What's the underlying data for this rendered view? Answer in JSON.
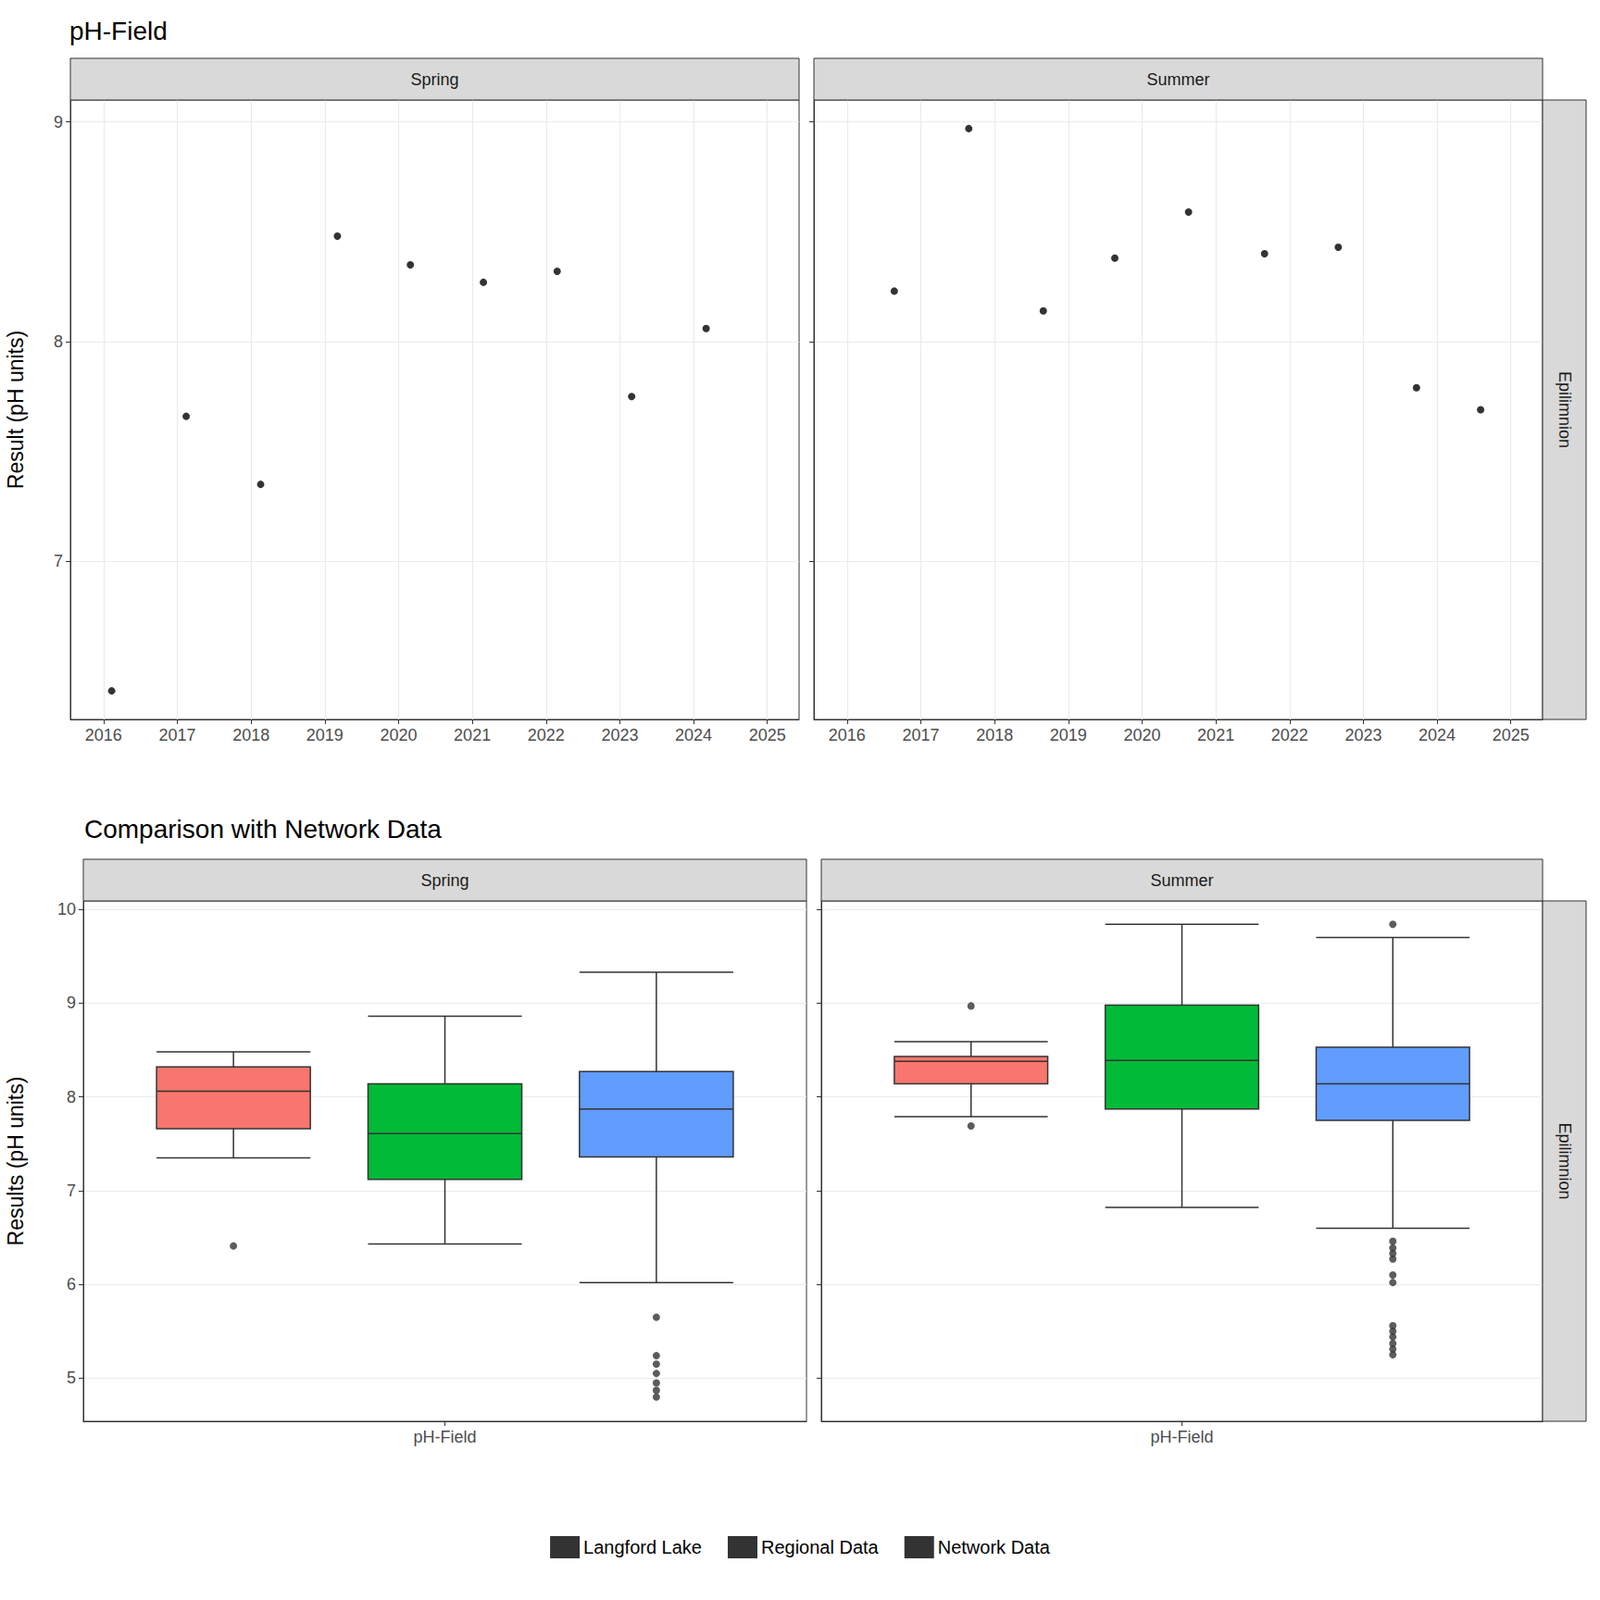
{
  "chart_data": [
    {
      "type": "scatter",
      "title": "pH-Field",
      "ylabel": "Result (pH units)",
      "row_label": "Epilimnion",
      "color": "#000000",
      "marker": "circle",
      "grid": true,
      "xlim": [
        2015.55,
        2025.43
      ],
      "xticks": [
        2016,
        2017,
        2018,
        2019,
        2020,
        2021,
        2022,
        2023,
        2024,
        2025
      ],
      "ylim": [
        6.28,
        9.1
      ],
      "yticks": [
        7,
        8,
        9
      ],
      "facets": [
        {
          "name": "Spring",
          "x": [
            2016.11,
            2017.12,
            2018.13,
            2019.17,
            2020.16,
            2021.15,
            2022.15,
            2023.16,
            2024.17
          ],
          "values": [
            6.41,
            7.66,
            7.35,
            8.48,
            8.35,
            8.27,
            8.32,
            7.75,
            8.06
          ]
        },
        {
          "name": "Summer",
          "x": [
            2016.64,
            2017.65,
            2018.66,
            2019.63,
            2020.63,
            2021.66,
            2022.66,
            2023.72,
            2024.59
          ],
          "values": [
            8.23,
            8.97,
            8.14,
            8.38,
            8.59,
            8.4,
            8.43,
            7.79,
            7.69
          ]
        }
      ]
    },
    {
      "type": "boxplot",
      "title": "Comparison with Network Data",
      "ylabel": "Results (pH units)",
      "row_label": "Epilimnion",
      "categories": [
        "pH-Field"
      ],
      "legend": "bottom",
      "grid": true,
      "ylim": [
        4.54,
        10.09
      ],
      "yticks": [
        5,
        6,
        7,
        8,
        9,
        10
      ],
      "facets": [
        {
          "name": "Spring",
          "series": [
            {
              "name": "Langford Lake",
              "color": "#F8766D",
              "values": [
                [
                  7.35,
                  7.66,
                  8.06,
                  8.32,
                  8.48
                ]
              ],
              "outliers": [
                [
                  6.41
                ]
              ]
            },
            {
              "name": "Regional Data",
              "color": "#00BA38",
              "values": [
                [
                  6.43,
                  7.12,
                  7.61,
                  8.14,
                  8.86
                ]
              ],
              "outliers": [
                []
              ]
            },
            {
              "name": "Network Data",
              "color": "#619CFF",
              "values": [
                [
                  6.02,
                  7.36,
                  7.87,
                  8.27,
                  9.33
                ]
              ],
              "outliers": [
                [
                  5.65,
                  5.24,
                  5.15,
                  5.05,
                  4.95,
                  4.87,
                  4.8
                ]
              ]
            }
          ]
        },
        {
          "name": "Summer",
          "series": [
            {
              "name": "Langford Lake",
              "color": "#F8766D",
              "values": [
                [
                  7.79,
                  8.14,
                  8.38,
                  8.43,
                  8.59
                ]
              ],
              "outliers": [
                [
                  8.97,
                  7.69
                ]
              ]
            },
            {
              "name": "Regional Data",
              "color": "#00BA38",
              "values": [
                [
                  6.82,
                  7.87,
                  8.39,
                  8.98,
                  9.84
                ]
              ],
              "outliers": [
                []
              ]
            },
            {
              "name": "Network Data",
              "color": "#619CFF",
              "values": [
                [
                  6.6,
                  7.75,
                  8.14,
                  8.53,
                  9.7
                ]
              ],
              "outliers": [
                [
                  9.84,
                  6.46,
                  6.39,
                  6.33,
                  6.27,
                  6.1,
                  6.02,
                  5.56,
                  5.5,
                  5.44,
                  5.37,
                  5.31,
                  5.25
                ]
              ]
            }
          ]
        }
      ]
    }
  ]
}
